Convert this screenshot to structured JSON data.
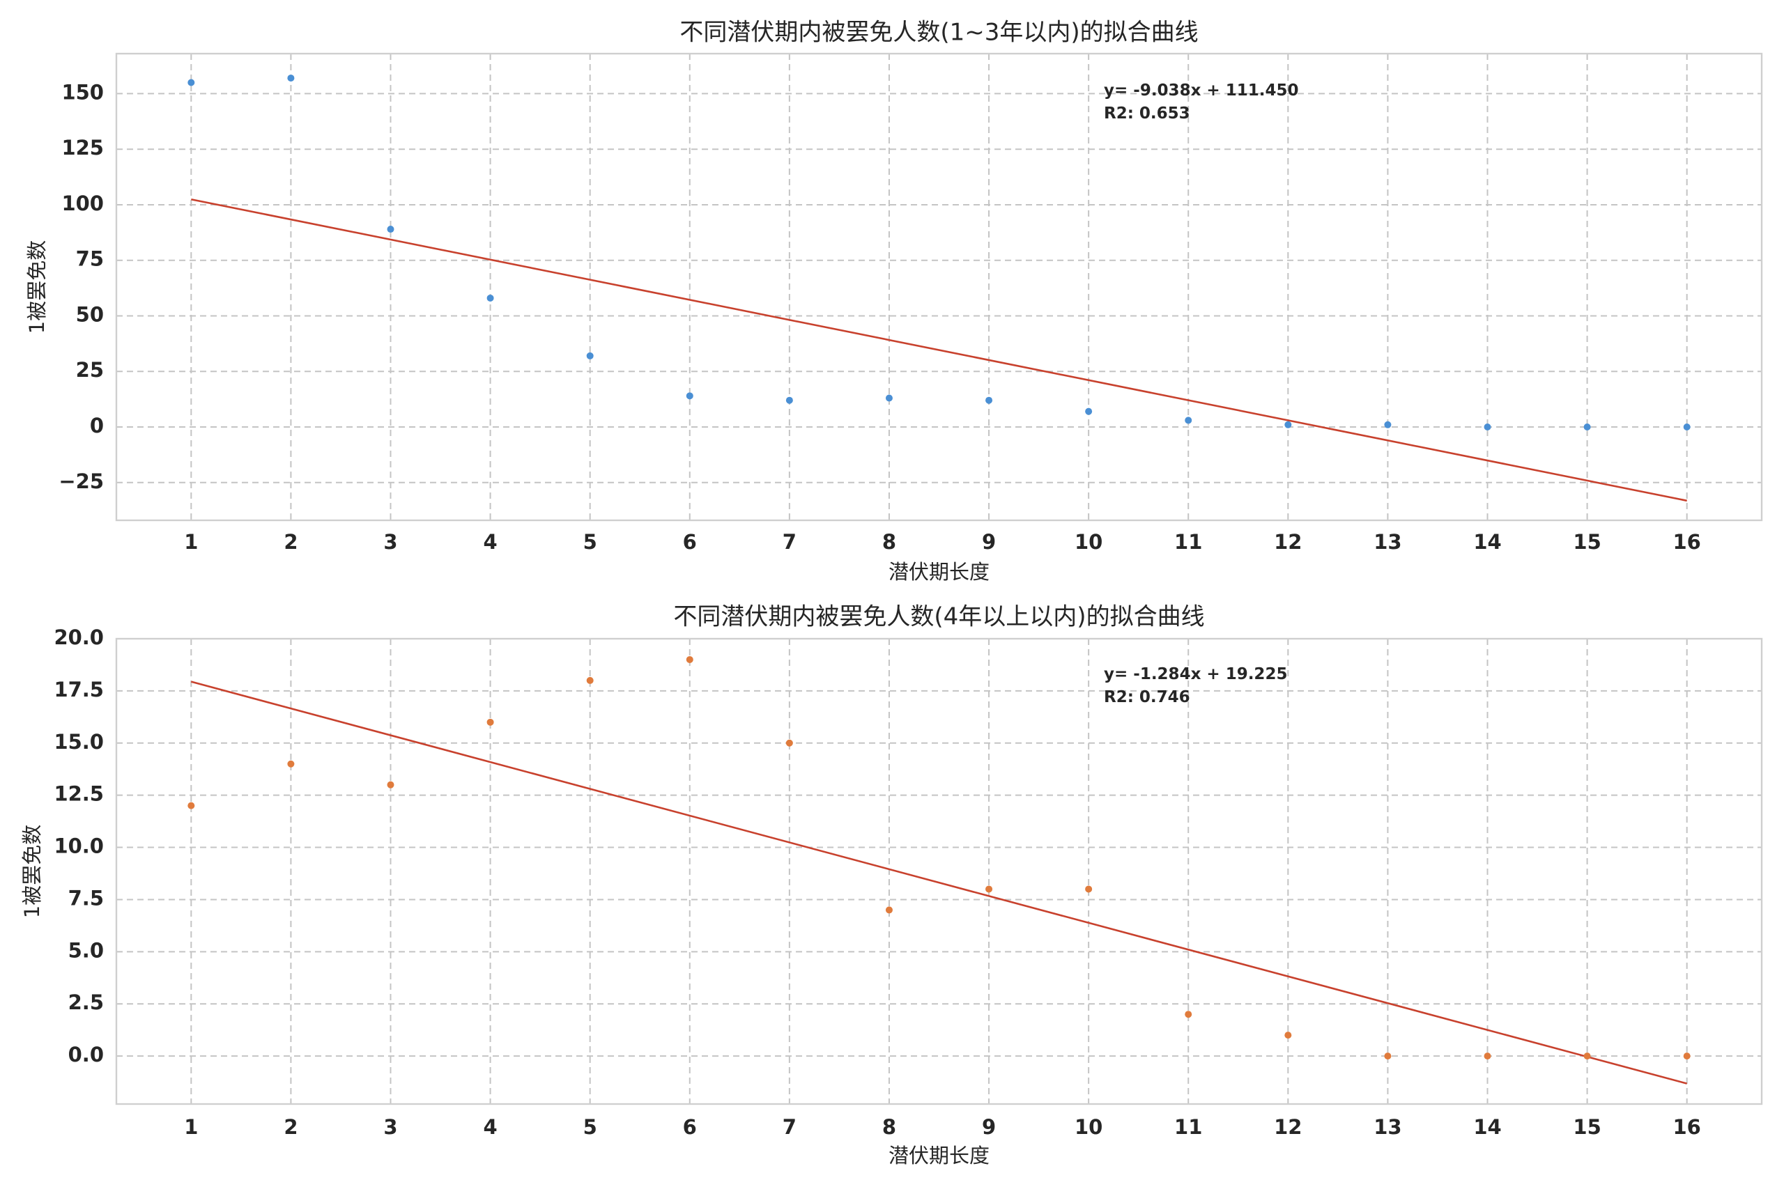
{
  "chart_data": [
    {
      "type": "scatter",
      "title": "不同潜伏期内被罢免人数(1~3年以内)的拟合曲线",
      "xlabel": "潜伏期长度",
      "ylabel": "1被罢免数",
      "x": [
        1,
        2,
        3,
        4,
        5,
        6,
        7,
        8,
        9,
        10,
        11,
        12,
        13,
        14,
        15,
        16
      ],
      "xticks": [
        1,
        2,
        3,
        4,
        5,
        6,
        7,
        8,
        9,
        10,
        11,
        12,
        13,
        14,
        15,
        16
      ],
      "xlim": [
        0.25,
        16.75
      ],
      "ylim": [
        -42,
        168
      ],
      "yticks": [
        -25,
        0,
        25,
        50,
        75,
        100,
        125,
        150
      ],
      "ytick_labels": [
        "−25",
        "0",
        "25",
        "50",
        "75",
        "100",
        "125",
        "150"
      ],
      "grid": true,
      "point_color": "#4a8fd4",
      "fit_color": "#c8412d",
      "series": [
        {
          "values": [
            155,
            157,
            89,
            58,
            32,
            14,
            12,
            13,
            12,
            7,
            3,
            1,
            1,
            0,
            0,
            0
          ]
        }
      ],
      "fit": {
        "slope": -9.038,
        "intercept": 111.45
      },
      "annotation": [
        "y= -9.038x + 111.450",
        "R2: 0.653"
      ]
    },
    {
      "type": "scatter",
      "title": "不同潜伏期内被罢免人数(4年以上以内)的拟合曲线",
      "xlabel": "潜伏期长度",
      "ylabel": "1被罢免数",
      "x": [
        1,
        2,
        3,
        4,
        5,
        6,
        7,
        8,
        9,
        10,
        11,
        12,
        13,
        14,
        15,
        16
      ],
      "xticks": [
        1,
        2,
        3,
        4,
        5,
        6,
        7,
        8,
        9,
        10,
        11,
        12,
        13,
        14,
        15,
        16
      ],
      "xlim": [
        0.25,
        16.75
      ],
      "ylim": [
        -2.3,
        20
      ],
      "yticks": [
        0,
        2.5,
        5,
        7.5,
        10,
        12.5,
        15,
        17.5,
        20
      ],
      "ytick_labels": [
        "0.0",
        "2.5",
        "5.0",
        "7.5",
        "10.0",
        "12.5",
        "15.0",
        "17.5",
        "20.0"
      ],
      "grid": true,
      "point_color": "#e07b3c",
      "fit_color": "#c8412d",
      "series": [
        {
          "values": [
            12,
            14,
            13,
            16,
            18,
            19,
            15,
            7,
            8,
            8,
            2,
            1,
            0,
            0,
            0,
            0
          ]
        }
      ],
      "fit": {
        "slope": -1.284,
        "intercept": 19.225
      },
      "annotation": [
        "y= -1.284x + 19.225",
        "R2: 0.746"
      ]
    }
  ]
}
